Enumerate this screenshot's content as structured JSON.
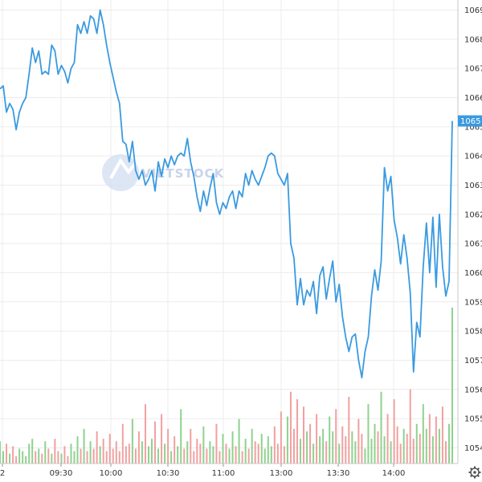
{
  "chart_data": {
    "type": "line",
    "title": "",
    "xlabel": "",
    "ylabel": "",
    "ylim": [
      1053.2,
      1069.3
    ],
    "x_ticks": [
      "2",
      "09:30",
      "10:00",
      "10:30",
      "11:00",
      "13:00",
      "13:30",
      "14:00"
    ],
    "y_ticks": [
      1054,
      1055,
      1056,
      1057,
      1058,
      1059,
      1060,
      1061,
      1062,
      1063,
      1064,
      1065,
      1066,
      1067,
      1068,
      1069
    ],
    "y_tick_labels": [
      "1054",
      "1055",
      "1056",
      "1057",
      "1058",
      "1059",
      "1060",
      "1061",
      "1062",
      "1063",
      "1064",
      "1065",
      "1066",
      "1067",
      "1068",
      "1069"
    ],
    "last_value_label": "1065",
    "grid": true,
    "price_series": {
      "color": "#3a9ae0",
      "values": [
        1066.3,
        1066.4,
        1065.5,
        1065.8,
        1065.6,
        1064.9,
        1065.5,
        1065.8,
        1066.0,
        1066.8,
        1067.7,
        1067.2,
        1067.6,
        1066.8,
        1066.9,
        1066.8,
        1067.8,
        1067.6,
        1066.8,
        1067.1,
        1066.9,
        1066.5,
        1067.0,
        1067.2,
        1068.5,
        1068.2,
        1068.6,
        1068.2,
        1068.8,
        1068.7,
        1068.2,
        1069.0,
        1068.5,
        1067.8,
        1067.2,
        1066.7,
        1066.2,
        1065.8,
        1064.5,
        1064.4,
        1063.8,
        1064.5,
        1063.5,
        1063.2,
        1063.5,
        1063.0,
        1063.2,
        1063.5,
        1062.8,
        1063.8,
        1063.3,
        1063.9,
        1063.6,
        1064.0,
        1063.7,
        1064.0,
        1064.1,
        1064.0,
        1064.6,
        1063.8,
        1063.3,
        1062.6,
        1062.1,
        1062.8,
        1062.3,
        1062.9,
        1063.4,
        1062.4,
        1062.0,
        1062.4,
        1062.2,
        1062.6,
        1062.8,
        1062.2,
        1062.8,
        1062.6,
        1063.4,
        1063.0,
        1063.5,
        1063.2,
        1063.0,
        1063.3,
        1063.6,
        1064.0,
        1064.1,
        1064.0,
        1063.4,
        1063.2,
        1063.0,
        1063.4,
        1061.0,
        1060.5,
        1058.9,
        1059.8,
        1058.9,
        1059.4,
        1059.2,
        1059.7,
        1058.6,
        1059.9,
        1060.2,
        1059.1,
        1059.8,
        1060.4,
        1059.0,
        1059.6,
        1058.5,
        1057.8,
        1057.3,
        1057.8,
        1057.9,
        1057.0,
        1056.4,
        1057.3,
        1057.8,
        1059.2,
        1060.1,
        1059.4,
        1060.4,
        1063.6,
        1062.8,
        1063.3,
        1061.8,
        1061.2,
        1060.3,
        1061.3,
        1060.5,
        1059.3,
        1056.6,
        1058.3,
        1057.8,
        1060.2,
        1061.7,
        1060.0,
        1061.9,
        1059.5,
        1062.0,
        1060.2,
        1059.2,
        1059.7,
        1065.2
      ]
    },
    "volume_series": {
      "values": [
        0.9,
        0.5,
        0.8,
        0.4,
        0.7,
        0.3,
        0.6,
        0.5,
        0.3,
        0.8,
        1.0,
        0.5,
        0.6,
        0.4,
        0.9,
        0.6,
        0.4,
        1.0,
        0.5,
        0.4,
        0.7,
        0.3,
        0.8,
        0.5,
        1.1,
        0.6,
        1.4,
        0.5,
        0.9,
        0.6,
        1.3,
        0.7,
        1.0,
        0.5,
        1.2,
        0.6,
        0.9,
        0.5,
        1.6,
        0.7,
        0.8,
        1.8,
        0.6,
        1.3,
        0.9,
        2.4,
        0.7,
        1.0,
        1.7,
        0.6,
        2.0,
        0.8,
        1.4,
        0.5,
        1.1,
        0.7,
        2.2,
        0.6,
        0.9,
        1.4,
        0.5,
        1.0,
        0.8,
        1.5,
        0.6,
        0.9,
        0.7,
        1.6,
        0.5,
        1.2,
        0.8,
        0.6,
        1.3,
        0.7,
        1.8,
        0.5,
        1.0,
        0.6,
        1.4,
        0.9,
        0.8,
        1.2,
        0.6,
        1.1,
        0.7,
        1.5,
        0.8,
        2.1,
        0.7,
        1.9,
        2.9,
        1.4,
        2.6,
        1.0,
        2.3,
        1.3,
        1.6,
        0.8,
        2.0,
        1.1,
        1.4,
        0.9,
        1.9,
        1.3,
        2.2,
        0.8,
        1.5,
        1.1,
        2.7,
        1.3,
        0.9,
        1.8,
        1.2,
        0.6,
        2.4,
        1.0,
        1.6,
        1.3,
        2.9,
        1.1,
        2.0,
        0.9,
        2.6,
        1.5,
        0.8,
        1.4,
        1.2,
        3.0,
        1.0,
        1.6,
        1.2,
        2.4,
        1.4,
        2.0,
        1.1,
        1.9,
        1.4,
        2.3,
        0.9,
        1.6,
        6.3
      ],
      "up_color": "#8fd18f",
      "down_color": "#f2a0a0"
    },
    "watermark_text": "VIETSTOCK"
  },
  "toolbar": {
    "settings_icon": "gear-icon"
  }
}
